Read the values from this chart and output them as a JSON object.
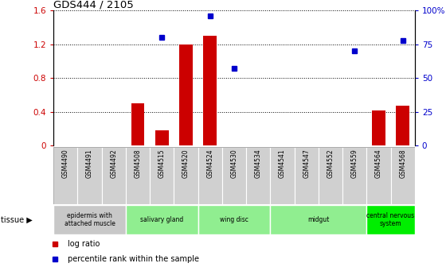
{
  "title": "GDS444 / 2105",
  "samples": [
    "GSM4490",
    "GSM4491",
    "GSM4492",
    "GSM4508",
    "GSM4515",
    "GSM4520",
    "GSM4524",
    "GSM4530",
    "GSM4534",
    "GSM4541",
    "GSM4547",
    "GSM4552",
    "GSM4559",
    "GSM4564",
    "GSM4568"
  ],
  "log_ratio": [
    0,
    0,
    0,
    0.5,
    0.18,
    1.2,
    1.3,
    0,
    0,
    0,
    0,
    0,
    0,
    0.42,
    0.47
  ],
  "percentile": [
    null,
    null,
    null,
    null,
    80,
    null,
    96,
    57,
    null,
    null,
    null,
    null,
    70,
    null,
    78
  ],
  "tissues": [
    {
      "label": "epidermis with\nattached muscle",
      "start": 0,
      "end": 3,
      "color": "#c8c8c8"
    },
    {
      "label": "salivary gland",
      "start": 3,
      "end": 6,
      "color": "#90ee90"
    },
    {
      "label": "wing disc",
      "start": 6,
      "end": 9,
      "color": "#90ee90"
    },
    {
      "label": "midgut",
      "start": 9,
      "end": 13,
      "color": "#90ee90"
    },
    {
      "label": "central nervous\nsystem",
      "start": 13,
      "end": 15,
      "color": "#00ee00"
    }
  ],
  "bar_color": "#cc0000",
  "dot_color": "#0000cc",
  "ylim_left": [
    0,
    1.6
  ],
  "ylim_right": [
    0,
    100
  ],
  "yticks_left": [
    0,
    0.4,
    0.8,
    1.2,
    1.6
  ],
  "yticks_right": [
    0,
    25,
    50,
    75,
    100
  ],
  "ytick_labels_left": [
    "0",
    "0.4",
    "0.8",
    "1.2",
    "1.6"
  ],
  "ytick_labels_right": [
    "0",
    "25",
    "50",
    "75",
    "100%"
  ],
  "tissue_label": "tissue ▶",
  "legend_items": [
    {
      "color": "#cc0000",
      "label": "log ratio"
    },
    {
      "color": "#0000cc",
      "label": "percentile rank within the sample"
    }
  ]
}
